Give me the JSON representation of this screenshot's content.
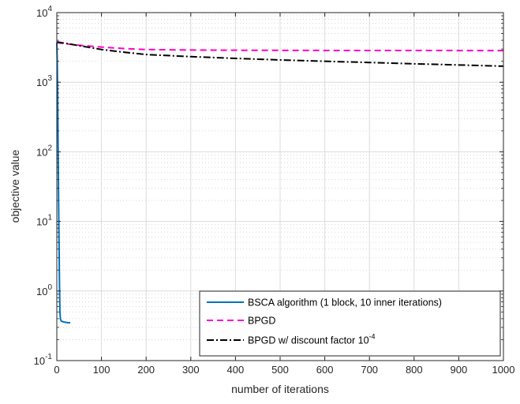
{
  "chart_data": {
    "type": "line",
    "xlabel": "number of iterations",
    "ylabel": "objective value",
    "xlim": [
      0,
      1000
    ],
    "ylim": [
      0.1,
      10000
    ],
    "yscale": "log",
    "grid": true,
    "minor_grid": true,
    "legend_position": "bottom-right",
    "x_ticks": [
      0,
      100,
      200,
      300,
      400,
      500,
      600,
      700,
      800,
      900,
      1000
    ],
    "x_tick_labels": [
      "0",
      "100",
      "200",
      "300",
      "400",
      "500",
      "600",
      "700",
      "800",
      "900",
      "1000"
    ],
    "y_ticks": [
      0.1,
      1,
      10,
      100,
      1000,
      10000
    ],
    "y_tick_labels": [
      {
        "base": "10",
        "exp": "-1"
      },
      {
        "base": "10",
        "exp": "0"
      },
      {
        "base": "10",
        "exp": "1"
      },
      {
        "base": "10",
        "exp": "2"
      },
      {
        "base": "10",
        "exp": "3"
      },
      {
        "base": "10",
        "exp": "4"
      }
    ],
    "series": [
      {
        "name": "BSCA algorithm (1 block, 10 inner iterations)",
        "color": "#0072BD",
        "style": "solid",
        "x": [
          0,
          1,
          2,
          3,
          4,
          5,
          6,
          7,
          8,
          10,
          15,
          20,
          25,
          30
        ],
        "y": [
          3700,
          2000,
          600,
          100,
          20,
          5,
          1.2,
          0.5,
          0.4,
          0.37,
          0.36,
          0.355,
          0.35,
          0.35
        ]
      },
      {
        "name": "BPGD",
        "color": "#FF00CC",
        "style": "dashed",
        "x": [
          0,
          50,
          100,
          150,
          200,
          300,
          400,
          500,
          600,
          700,
          800,
          900,
          1000
        ],
        "y": [
          3700,
          3400,
          3200,
          3050,
          2950,
          2900,
          2880,
          2870,
          2860,
          2860,
          2860,
          2850,
          2850
        ]
      },
      {
        "name": "BPGD w/ discount factor 10",
        "name_sup": "-4",
        "color": "#000000",
        "style": "dashdot",
        "x": [
          0,
          50,
          100,
          150,
          200,
          300,
          400,
          500,
          600,
          700,
          800,
          900,
          1000
        ],
        "y": [
          3800,
          3350,
          2950,
          2700,
          2500,
          2330,
          2200,
          2090,
          2000,
          1920,
          1840,
          1770,
          1700
        ]
      }
    ]
  }
}
